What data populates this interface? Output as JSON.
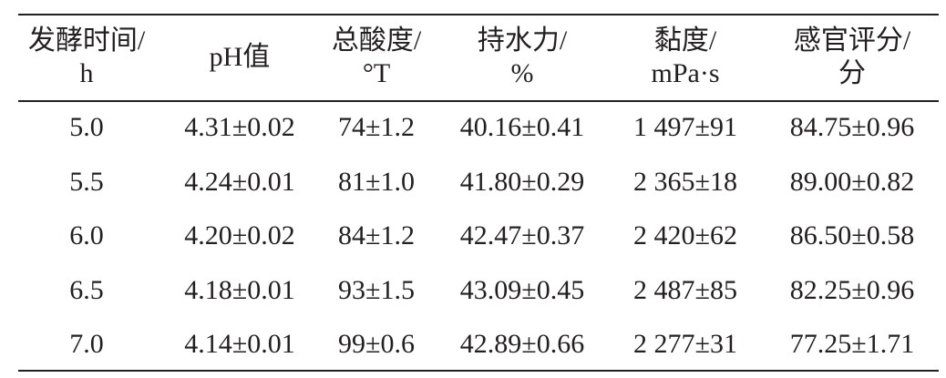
{
  "table": {
    "header": [
      [
        "发酵时间/",
        "h"
      ],
      [
        "pH值"
      ],
      [
        "总酸度/",
        "°T"
      ],
      [
        "持水力/",
        "%"
      ],
      [
        "黏度/",
        "mPa·s"
      ],
      [
        "感官评分/",
        "分"
      ]
    ],
    "rows": [
      [
        "5.0",
        "4.31±0.02",
        "74±1.2",
        "40.16±0.41",
        "1 497±91",
        "84.75±0.96"
      ],
      [
        "5.5",
        "4.24±0.01",
        "81±1.0",
        "41.80±0.29",
        "2 365±18",
        "89.00±0.82"
      ],
      [
        "6.0",
        "4.20±0.02",
        "84±1.2",
        "42.47±0.37",
        "2 420±62",
        "86.50±0.58"
      ],
      [
        "6.5",
        "4.18±0.01",
        "93±1.5",
        "43.09±0.45",
        "2 487±85",
        "82.25±0.96"
      ],
      [
        "7.0",
        "4.14±0.01",
        "99±0.6",
        "42.89±0.66",
        "2 277±31",
        "77.25±1.71"
      ]
    ]
  }
}
